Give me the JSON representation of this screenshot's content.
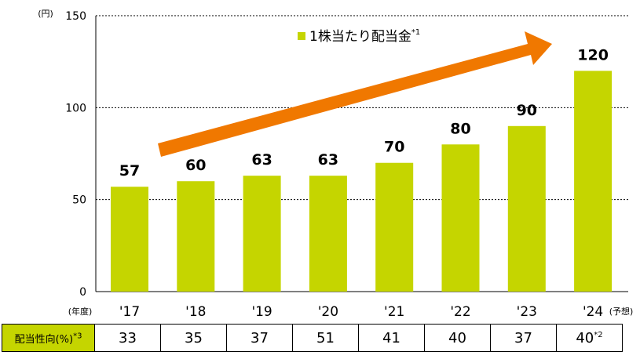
{
  "chart_data": {
    "type": "bar",
    "ylabel": "(円)",
    "xlabel": "(年度)",
    "ylim": [
      0,
      150
    ],
    "yticks": [
      0,
      50,
      100,
      150
    ],
    "grid": true,
    "legend_position": "top-center",
    "series": [
      {
        "name": "1株当たり配当金",
        "name_note": "*1",
        "color": "#c5d500",
        "values": [
          57,
          60,
          63,
          63,
          70,
          80,
          90,
          120
        ]
      }
    ],
    "categories": [
      "'17",
      "'18",
      "'19",
      "'20",
      "'21",
      "'22",
      "'23",
      "'24"
    ],
    "forecast_note": "(予想)",
    "trend_arrow_color": "#f07800"
  },
  "table": {
    "header": "配当性向(%)",
    "header_note": "*3",
    "values": [
      "33",
      "35",
      "37",
      "51",
      "41",
      "40",
      "37",
      "40"
    ],
    "last_value_note": "*2"
  },
  "colors": {
    "bar": "#c5d500",
    "arrow": "#f07800"
  }
}
